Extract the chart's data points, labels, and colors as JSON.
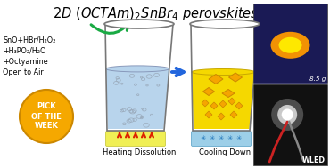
{
  "title": "2D (OCTAm)₂SnBr₄ perovskites",
  "reagents": [
    "SnO+HBr/H₂O₂",
    "+H₃PO₂/H₂O",
    "+Octyamine",
    "Open to Air"
  ],
  "label_heating": "Heating Dissolution",
  "label_cooling": "Cooling Down",
  "label_8g": "8.5 g",
  "label_wled": "WLED",
  "pick_text": [
    "PICK",
    "OF THE",
    "WEEK"
  ],
  "bg_color": "#ffffff",
  "green_arrow_color": "#1aaa44",
  "pick_circle_color": "#f5a800",
  "photo1_bg": "#1a1a55",
  "photo2_bg": "#111111",
  "beaker_edge": "#777777",
  "sol1_color": "#b8d4ec",
  "sol2_color": "#f5d800",
  "heat_pad_color": "#f0ef55",
  "cool_pad_color": "#9dcfe8",
  "crystal_color": "#f5a500",
  "crystal_edge": "#cc8800",
  "bubble_color": "#9aaabb",
  "red_arrow": "#dd2200",
  "blue_arrow": "#2266dd"
}
